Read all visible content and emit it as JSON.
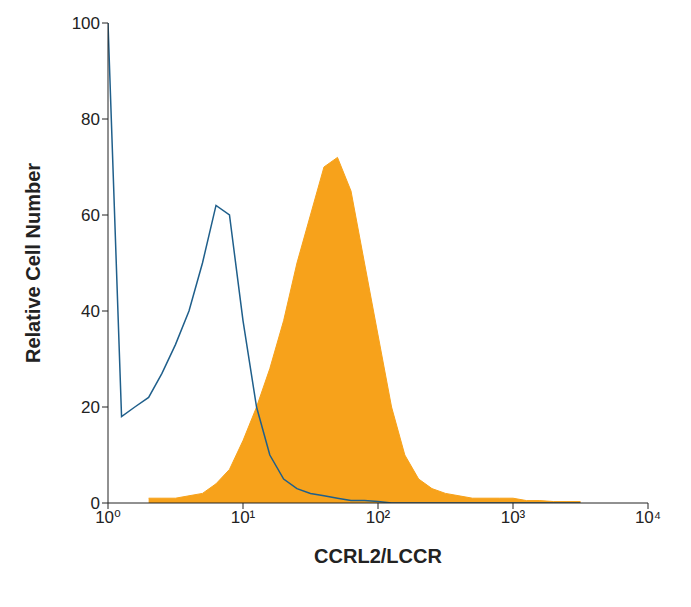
{
  "chart_data": {
    "type": "area",
    "x_label": "CCRL2/LCCR",
    "y_label": "Relative Cell Number",
    "log": "x",
    "grid": false,
    "xlim": [
      1,
      10000
    ],
    "xticks": [
      {
        "value": 1,
        "label": "10⁰"
      },
      {
        "value": 10,
        "label": "10¹"
      },
      {
        "value": 100,
        "label": "10²"
      },
      {
        "value": 1000,
        "label": "10³"
      },
      {
        "value": 10000,
        "label": "10⁴"
      }
    ],
    "ylim": [
      0,
      100
    ],
    "yticks": [
      0,
      20,
      40,
      60,
      80,
      100
    ],
    "x": [
      1,
      1.26,
      1.58,
      2,
      2.51,
      3.16,
      3.98,
      5.01,
      6.31,
      7.94,
      10,
      12.6,
      15.8,
      20,
      25.1,
      31.6,
      39.8,
      50.1,
      63.1,
      79.4,
      100,
      126,
      158,
      200,
      251,
      316,
      398,
      501,
      631,
      794,
      1000,
      1260,
      1580,
      2000,
      2510,
      3160
    ],
    "series": [
      {
        "type": "area",
        "color": "#f7a21b",
        "values": [
          null,
          null,
          null,
          1,
          1,
          1,
          1.5,
          2,
          4,
          7,
          13,
          20,
          28,
          38,
          50,
          60,
          70,
          72,
          65,
          50,
          35,
          20,
          10,
          5,
          3,
          2,
          1.5,
          1,
          1,
          1,
          1,
          0.5,
          0.5,
          0.3,
          0.3,
          0.3
        ]
      },
      {
        "type": "line",
        "color": "#1f5f8b",
        "values": [
          100,
          18,
          20,
          22,
          27,
          33,
          40,
          50,
          62,
          60,
          38,
          20,
          10,
          5,
          3,
          2,
          1.5,
          1,
          0.5,
          0.5,
          0.3,
          0,
          0,
          0,
          0,
          0,
          0,
          0,
          0,
          0,
          0,
          0,
          0,
          0,
          0,
          0
        ]
      }
    ]
  }
}
